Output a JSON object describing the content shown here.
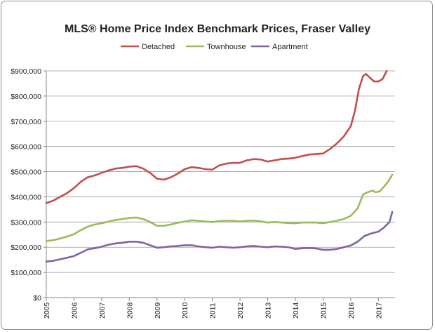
{
  "chart_data": {
    "type": "line",
    "title": "MLS® Home Price Index Benchmark Prices, Fraser Valley",
    "xlabel": "",
    "ylabel": "",
    "xlim": [
      2005.0,
      2017.6
    ],
    "ylim": [
      0,
      900000
    ],
    "y_ticks": [
      0,
      100000,
      200000,
      300000,
      400000,
      500000,
      600000,
      700000,
      800000,
      900000
    ],
    "y_tick_labels": [
      "$0",
      "$100,000",
      "$200,000",
      "$300,000",
      "$400,000",
      "$500,000",
      "$600,000",
      "$700,000",
      "$800,000",
      "$900,000"
    ],
    "x_ticks": [
      2005,
      2006,
      2007,
      2008,
      2009,
      2010,
      2011,
      2012,
      2013,
      2014,
      2015,
      2016,
      2017
    ],
    "x_tick_labels": [
      "2005",
      "2006",
      "2007",
      "2008",
      "2009",
      "2010",
      "2011",
      "2012",
      "2013",
      "2014",
      "2015",
      "2016",
      "2017"
    ],
    "grid": "horizontal",
    "legend_position": "top",
    "series": [
      {
        "name": "Detached",
        "color": "#c0504d",
        "points": [
          [
            2005.0,
            375000
          ],
          [
            2005.25,
            385000
          ],
          [
            2005.5,
            400000
          ],
          [
            2005.75,
            415000
          ],
          [
            2006.0,
            435000
          ],
          [
            2006.25,
            460000
          ],
          [
            2006.5,
            478000
          ],
          [
            2006.75,
            485000
          ],
          [
            2007.0,
            495000
          ],
          [
            2007.25,
            505000
          ],
          [
            2007.5,
            512000
          ],
          [
            2007.75,
            515000
          ],
          [
            2008.0,
            520000
          ],
          [
            2008.25,
            522000
          ],
          [
            2008.5,
            512000
          ],
          [
            2008.75,
            495000
          ],
          [
            2009.0,
            472000
          ],
          [
            2009.25,
            468000
          ],
          [
            2009.5,
            478000
          ],
          [
            2009.75,
            492000
          ],
          [
            2010.0,
            510000
          ],
          [
            2010.25,
            518000
          ],
          [
            2010.5,
            515000
          ],
          [
            2010.75,
            510000
          ],
          [
            2011.0,
            508000
          ],
          [
            2011.25,
            525000
          ],
          [
            2011.5,
            532000
          ],
          [
            2011.75,
            535000
          ],
          [
            2012.0,
            535000
          ],
          [
            2012.25,
            545000
          ],
          [
            2012.5,
            550000
          ],
          [
            2012.75,
            548000
          ],
          [
            2013.0,
            540000
          ],
          [
            2013.25,
            545000
          ],
          [
            2013.5,
            550000
          ],
          [
            2013.75,
            552000
          ],
          [
            2014.0,
            555000
          ],
          [
            2014.25,
            562000
          ],
          [
            2014.5,
            568000
          ],
          [
            2014.75,
            570000
          ],
          [
            2015.0,
            572000
          ],
          [
            2015.25,
            590000
          ],
          [
            2015.5,
            612000
          ],
          [
            2015.75,
            640000
          ],
          [
            2016.0,
            680000
          ],
          [
            2016.15,
            740000
          ],
          [
            2016.3,
            830000
          ],
          [
            2016.45,
            880000
          ],
          [
            2016.55,
            888000
          ],
          [
            2016.7,
            872000
          ],
          [
            2016.85,
            858000
          ],
          [
            2017.0,
            858000
          ],
          [
            2017.15,
            868000
          ],
          [
            2017.3,
            900000
          ]
        ]
      },
      {
        "name": "Townhouse",
        "color": "#9bbb59",
        "points": [
          [
            2005.0,
            225000
          ],
          [
            2005.25,
            228000
          ],
          [
            2005.5,
            235000
          ],
          [
            2005.75,
            242000
          ],
          [
            2006.0,
            252000
          ],
          [
            2006.25,
            268000
          ],
          [
            2006.5,
            282000
          ],
          [
            2006.75,
            290000
          ],
          [
            2007.0,
            295000
          ],
          [
            2007.25,
            302000
          ],
          [
            2007.5,
            308000
          ],
          [
            2007.75,
            312000
          ],
          [
            2008.0,
            316000
          ],
          [
            2008.25,
            318000
          ],
          [
            2008.5,
            312000
          ],
          [
            2008.75,
            300000
          ],
          [
            2009.0,
            285000
          ],
          [
            2009.25,
            285000
          ],
          [
            2009.5,
            290000
          ],
          [
            2009.75,
            297000
          ],
          [
            2010.0,
            302000
          ],
          [
            2010.25,
            307000
          ],
          [
            2010.5,
            305000
          ],
          [
            2010.75,
            302000
          ],
          [
            2011.0,
            300000
          ],
          [
            2011.25,
            304000
          ],
          [
            2011.5,
            305000
          ],
          [
            2011.75,
            305000
          ],
          [
            2012.0,
            302000
          ],
          [
            2012.25,
            305000
          ],
          [
            2012.5,
            306000
          ],
          [
            2012.75,
            303000
          ],
          [
            2013.0,
            298000
          ],
          [
            2013.25,
            300000
          ],
          [
            2013.5,
            298000
          ],
          [
            2013.75,
            296000
          ],
          [
            2014.0,
            295000
          ],
          [
            2014.25,
            298000
          ],
          [
            2014.5,
            298000
          ],
          [
            2014.75,
            298000
          ],
          [
            2015.0,
            295000
          ],
          [
            2015.25,
            300000
          ],
          [
            2015.5,
            305000
          ],
          [
            2015.75,
            312000
          ],
          [
            2016.0,
            325000
          ],
          [
            2016.25,
            355000
          ],
          [
            2016.45,
            410000
          ],
          [
            2016.6,
            418000
          ],
          [
            2016.8,
            425000
          ],
          [
            2016.9,
            418000
          ],
          [
            2017.05,
            422000
          ],
          [
            2017.2,
            440000
          ],
          [
            2017.35,
            460000
          ],
          [
            2017.5,
            488000
          ]
        ]
      },
      {
        "name": "Apartment",
        "color": "#8064a2",
        "points": [
          [
            2005.0,
            143000
          ],
          [
            2005.25,
            146000
          ],
          [
            2005.5,
            152000
          ],
          [
            2005.75,
            158000
          ],
          [
            2006.0,
            165000
          ],
          [
            2006.25,
            178000
          ],
          [
            2006.5,
            192000
          ],
          [
            2006.75,
            196000
          ],
          [
            2007.0,
            202000
          ],
          [
            2007.25,
            210000
          ],
          [
            2007.5,
            215000
          ],
          [
            2007.75,
            218000
          ],
          [
            2008.0,
            222000
          ],
          [
            2008.25,
            222000
          ],
          [
            2008.5,
            218000
          ],
          [
            2008.75,
            208000
          ],
          [
            2009.0,
            198000
          ],
          [
            2009.25,
            200000
          ],
          [
            2009.5,
            203000
          ],
          [
            2009.75,
            205000
          ],
          [
            2010.0,
            208000
          ],
          [
            2010.25,
            208000
          ],
          [
            2010.5,
            203000
          ],
          [
            2010.75,
            200000
          ],
          [
            2011.0,
            198000
          ],
          [
            2011.25,
            202000
          ],
          [
            2011.5,
            200000
          ],
          [
            2011.75,
            198000
          ],
          [
            2012.0,
            200000
          ],
          [
            2012.25,
            203000
          ],
          [
            2012.5,
            205000
          ],
          [
            2012.75,
            202000
          ],
          [
            2013.0,
            200000
          ],
          [
            2013.25,
            203000
          ],
          [
            2013.5,
            202000
          ],
          [
            2013.75,
            200000
          ],
          [
            2014.0,
            193000
          ],
          [
            2014.25,
            196000
          ],
          [
            2014.5,
            197000
          ],
          [
            2014.75,
            195000
          ],
          [
            2015.0,
            190000
          ],
          [
            2015.25,
            190000
          ],
          [
            2015.5,
            193000
          ],
          [
            2015.75,
            200000
          ],
          [
            2016.0,
            207000
          ],
          [
            2016.25,
            222000
          ],
          [
            2016.5,
            245000
          ],
          [
            2016.75,
            255000
          ],
          [
            2017.0,
            262000
          ],
          [
            2017.2,
            278000
          ],
          [
            2017.4,
            300000
          ],
          [
            2017.5,
            340000
          ]
        ]
      }
    ]
  }
}
